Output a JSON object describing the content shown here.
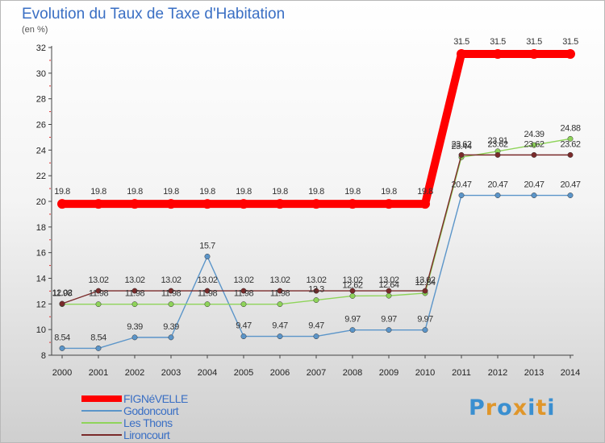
{
  "chart_data": {
    "type": "line",
    "title": "Evolution du Taux de Taxe d'Habitation",
    "subtitle": "(en %)",
    "xlabel": "",
    "ylabel": "",
    "ylim": [
      8,
      32
    ],
    "yticks": [
      8,
      10,
      12,
      14,
      16,
      18,
      20,
      22,
      24,
      26,
      28,
      30,
      32
    ],
    "grid": false,
    "legend_position": "bottom-left",
    "categories": [
      "2000",
      "2001",
      "2002",
      "2003",
      "2004",
      "2005",
      "2006",
      "2007",
      "2008",
      "2009",
      "2010",
      "2011",
      "2012",
      "2013",
      "2014"
    ],
    "series": [
      {
        "name": "FIGNéVELLE",
        "color": "#ff0000",
        "values": [
          19.8,
          19.8,
          19.8,
          19.8,
          19.8,
          19.8,
          19.8,
          19.8,
          19.8,
          19.8,
          19.8,
          31.5,
          31.5,
          31.5,
          31.5
        ],
        "labels": [
          "19.8",
          "19.8",
          "19.8",
          "19.8",
          "19.8",
          "19.8",
          "19.8",
          "19.8",
          "19.8",
          "19.8",
          "19.8",
          "31.5",
          "31.5",
          "31.5",
          "31.5"
        ]
      },
      {
        "name": "Godoncourt",
        "color": "#5b95c9",
        "values": [
          8.54,
          8.54,
          9.39,
          9.39,
          15.7,
          9.47,
          9.47,
          9.47,
          9.97,
          9.97,
          9.97,
          20.47,
          20.47,
          20.47,
          20.47
        ],
        "labels": [
          "8.54",
          "8.54",
          "9.39",
          "9.39",
          "15.7",
          "9.47",
          "9.47",
          "9.47",
          "9.97",
          "9.97",
          "9.97",
          "20.47",
          "20.47",
          "20.47",
          "20.47"
        ]
      },
      {
        "name": "Les Thons",
        "color": "#8fd45a",
        "values": [
          11.98,
          11.98,
          11.98,
          11.98,
          11.98,
          11.98,
          11.98,
          12.3,
          12.62,
          12.64,
          12.84,
          23.44,
          23.91,
          24.39,
          24.88
        ],
        "labels": [
          "11.98",
          "11.98",
          "11.98",
          "11.98",
          "11.98",
          "11.98",
          "11.98",
          "12.3",
          "12.62",
          "12.64",
          "12.84",
          "23.44",
          "23.91",
          "24.39",
          "24.88"
        ]
      },
      {
        "name": "Lironcourt",
        "color": "#7a2a2a",
        "values": [
          12.02,
          13.02,
          13.02,
          13.02,
          13.02,
          13.02,
          13.02,
          13.02,
          13.02,
          13.02,
          13.02,
          23.62,
          23.62,
          23.62,
          23.62
        ],
        "labels": [
          "12.02",
          "13.02",
          "13.02",
          "13.02",
          "13.02",
          "13.02",
          "13.02",
          "13.02",
          "13.02",
          "13.02",
          "13.02",
          "23.62",
          "23.62",
          "23.62",
          "23.62"
        ]
      }
    ]
  },
  "logo": {
    "text": "Proxiti",
    "colors": [
      "#3a8fd0",
      "#e0962a",
      "#3a8fd0",
      "#e0962a",
      "#3a8fd0",
      "#e0962a",
      "#3a8fd0"
    ]
  }
}
